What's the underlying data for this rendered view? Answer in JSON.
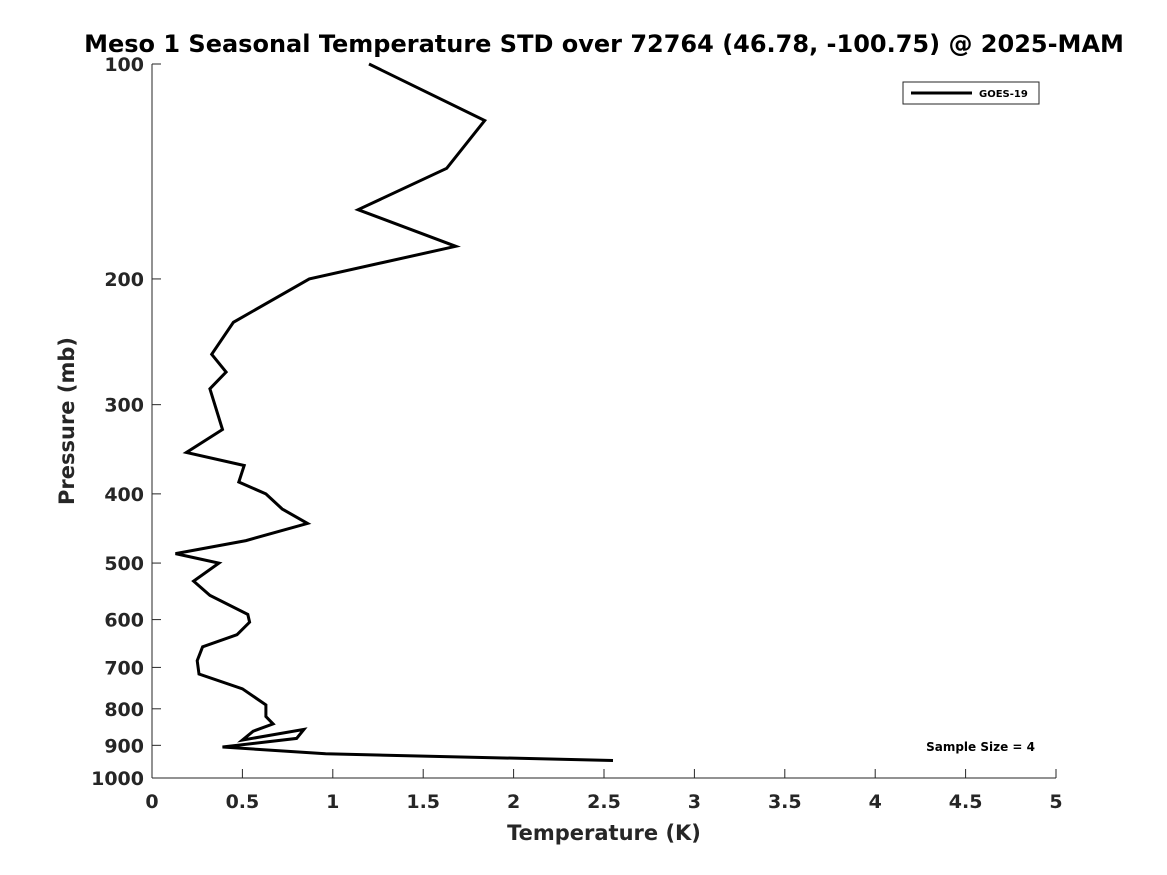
{
  "chart_data": {
    "type": "line",
    "title": "Meso 1 Seasonal Temperature STD over 72764 (46.78, -100.75) @ 2025-MAM",
    "xlabel": "Temperature (K)",
    "ylabel": "Pressure (mb)",
    "xlim": [
      0,
      5
    ],
    "ylim": [
      100,
      1000
    ],
    "y_scale": "log",
    "y_reversed": true,
    "x_ticks": [
      0,
      0.5,
      1,
      1.5,
      2,
      2.5,
      3,
      3.5,
      4,
      4.5,
      5
    ],
    "x_tick_labels": [
      "0",
      "0.5",
      "1",
      "1.5",
      "2",
      "2.5",
      "3",
      "3.5",
      "4",
      "4.5",
      "5"
    ],
    "y_ticks": [
      100,
      200,
      300,
      400,
      500,
      600,
      700,
      800,
      900,
      1000
    ],
    "y_tick_labels": [
      "100",
      "200",
      "300",
      "400",
      "500",
      "600",
      "700",
      "800",
      "900",
      "1000"
    ],
    "grid": false,
    "legend_position": "top-right",
    "annotation": "Sample Size = 4",
    "series": [
      {
        "name": "GOES-19",
        "color": "#000000",
        "x": [
          1.2,
          1.84,
          1.63,
          1.14,
          1.68,
          0.87,
          0.45,
          0.33,
          0.41,
          0.32,
          0.39,
          0.19,
          0.51,
          0.48,
          0.63,
          0.72,
          0.86,
          0.52,
          0.13,
          0.37,
          0.23,
          0.32,
          0.53,
          0.54,
          0.47,
          0.28,
          0.25,
          0.26,
          0.5,
          0.63,
          0.63,
          0.67,
          0.56,
          0.5,
          0.84,
          0.8,
          0.39,
          0.96,
          2.55
        ],
        "y": [
          100,
          120,
          140,
          160,
          180,
          200,
          230,
          255,
          270,
          285,
          325,
          350,
          365,
          385,
          400,
          420,
          440,
          465,
          485,
          500,
          530,
          555,
          590,
          605,
          630,
          655,
          685,
          715,
          750,
          790,
          820,
          840,
          860,
          885,
          855,
          880,
          905,
          925,
          945
        ]
      }
    ]
  }
}
